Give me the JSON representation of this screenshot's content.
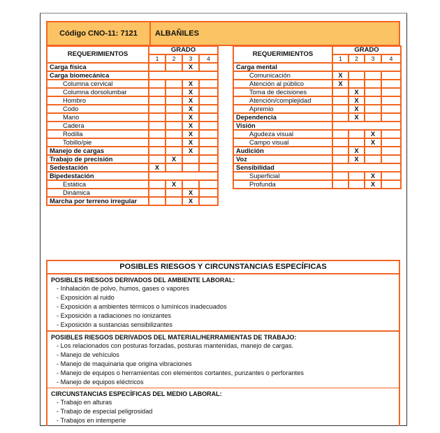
{
  "header": {
    "code_label": "Código CNO-11:  7121",
    "occupation": "ALBAÑILES"
  },
  "colors": {
    "border": "#f26522",
    "header_fill": "#fcc364"
  },
  "left_table": {
    "req_header": "REQUERIMIENTOS",
    "grado_header": "GRADO",
    "grades": [
      "1",
      "2",
      "3",
      "4"
    ],
    "rows": [
      {
        "label": "Carga física",
        "bold": true,
        "grade": 3
      },
      {
        "label": "Carga biomecánica",
        "bold": true,
        "merged": true
      },
      {
        "label": "Columna cervical",
        "grade": 3
      },
      {
        "label": "Columna dorsolumbar",
        "grade": 3
      },
      {
        "label": "Hombro",
        "grade": 3
      },
      {
        "label": "Codo",
        "grade": 3
      },
      {
        "label": "Mano",
        "grade": 3
      },
      {
        "label": "Cadera",
        "grade": 3
      },
      {
        "label": "Rodilla",
        "grade": 3
      },
      {
        "label": "Tobillo/pie",
        "grade": 3
      },
      {
        "label": "Manejo de cargas",
        "bold": true,
        "grade": 3
      },
      {
        "label": "Trabajo de precisión",
        "bold": true,
        "grade": 2
      },
      {
        "label": "Sedestación",
        "bold": true,
        "grade": 1
      },
      {
        "label": "Bipedestación",
        "bold": true,
        "merged": true
      },
      {
        "label": "Estática",
        "grade": 2
      },
      {
        "label": "Dinámica",
        "grade": 3
      },
      {
        "label": "Marcha por terreno irregular",
        "bold": true,
        "grade": 3
      }
    ]
  },
  "right_table": {
    "req_header": "REQUERIMIENTOS",
    "grado_header": "GRADO",
    "grades": [
      "1",
      "2",
      "3",
      "4"
    ],
    "rows": [
      {
        "label": "Carga mental",
        "bold": true,
        "merged": true
      },
      {
        "label": "Comunicación",
        "grade": 1
      },
      {
        "label": "Atención al público",
        "grade": 1
      },
      {
        "label": "Toma de decisiones",
        "grade": 2
      },
      {
        "label": "Atención/complejidad",
        "grade": 2
      },
      {
        "label": "Apremio",
        "grade": 2
      },
      {
        "label": "Dependencia",
        "bold": true,
        "grade": 2
      },
      {
        "label": "Visión",
        "bold": true,
        "merged": true
      },
      {
        "label": "Agudeza visual",
        "grade": 3
      },
      {
        "label": "Campo visual",
        "grade": 3
      },
      {
        "label": "Audición",
        "bold": true,
        "grade": 2
      },
      {
        "label": "Voz",
        "bold": true,
        "grade": 2
      },
      {
        "label": "Sensibilidad",
        "bold": true,
        "merged": true
      },
      {
        "label": "Superficial",
        "grade": 3
      },
      {
        "label": "Profunda",
        "grade": 3
      }
    ]
  },
  "mark": "X",
  "risks": {
    "title": "POSIBLES RIESGOS  Y CIRCUNSTANCIAS ESPECÍFICAS",
    "sections": [
      {
        "heading": "POSIBLES RIESGOS DERIVADOS DEL AMBIENTE LABORAL:",
        "items": [
          "-  Inhalación de polvo, humos, gases o vapores",
          "-  Exposición al ruido",
          "-  Exposición a ambientes térmicos o lumínicos inadecuados",
          "-  Exposición a radiaciones no ionizantes",
          "-  Exposición a sustancias sensibilizantes"
        ]
      },
      {
        "heading": "POSIBLES RIESGOS DERIVADOS DEL MATERIAL/HERRAMIENTAS DE TRABAJO:",
        "items": [
          "-  Los relacionados con posturas forzadas, posturas mantenidas, manejo de cargas.",
          "-  Manejo de vehículos",
          "-  Manejo de maquinaria que origina vibraciones",
          "-  Manejo de equipos o herramientas con elementos cortantes, punzantes o perforantes",
          "-  Manejo de equipos eléctricos"
        ]
      },
      {
        "heading": "CIRCUNSTANCIAS ESPECÍFICAS DEL MEDIO LABORAL:",
        "items": [
          "-  Trabajo en alturas",
          "-  Trabajo de especial peligrosidad",
          "-  Trabajos en intemperie"
        ]
      }
    ]
  }
}
